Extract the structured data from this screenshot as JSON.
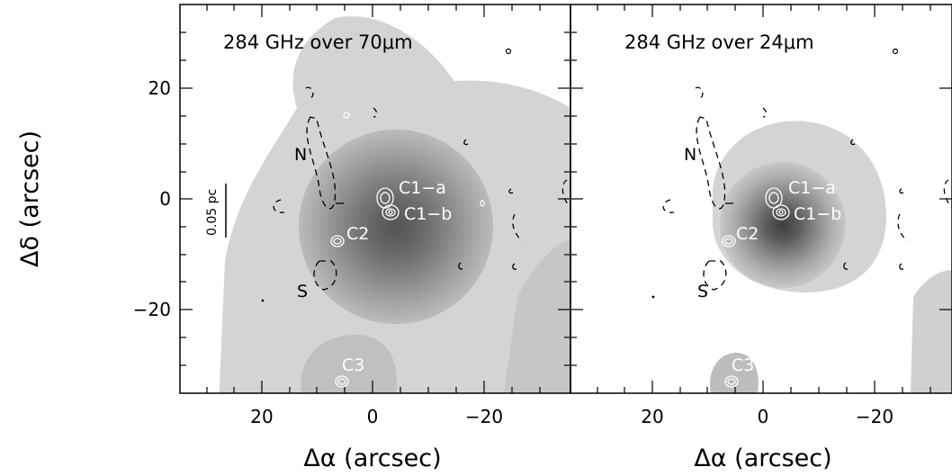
{
  "figure": {
    "xlabel": "Δα (arcsec)",
    "ylabel": "Δδ (arcsec)",
    "scalebar_label": "0.05 pc",
    "x_ticks": [
      "20",
      "0",
      "−20"
    ],
    "y_ticks": [
      "20",
      "0",
      "−20"
    ]
  },
  "panels": [
    {
      "title": "284 GHz over 70μm"
    },
    {
      "title": "284 GHz over 24μm"
    }
  ],
  "annotations": {
    "C1a": "C1−a",
    "C1b": "C1−b",
    "C2": "C2",
    "C3": "C3",
    "N": "N",
    "S": "S"
  },
  "chart_data": {
    "type": "heatmap",
    "panels": [
      {
        "title": "284 GHz over 70μm",
        "background": "70μm emission (grayscale filled contours)",
        "overlay": "284 GHz emission (contours)"
      },
      {
        "title": "284 GHz over 24μm",
        "background": "24μm emission (grayscale filled contours)",
        "overlay": "284 GHz emission (contours)"
      }
    ],
    "xlabel": "Δα (arcsec)",
    "ylabel": "Δδ (arcsec)",
    "xlim": [
      35,
      -35
    ],
    "ylim": [
      -35,
      35
    ],
    "x_ticks": [
      20,
      0,
      -20
    ],
    "y_ticks": [
      20,
      0,
      -20
    ],
    "sources": [
      {
        "name": "C1−a",
        "x": -2,
        "y": 0.5
      },
      {
        "name": "C1−b",
        "x": -2.5,
        "y": -2.5
      },
      {
        "name": "C2",
        "x": 7,
        "y": -7.5
      },
      {
        "name": "C3",
        "x": 6,
        "y": -33
      }
    ],
    "scale_bar": "0.05 pc",
    "colors": {
      "background": "#ffffff",
      "gray_levels": [
        "#d4d4d4",
        "#c6c6c6",
        "#b4b4b4",
        "#a2a2a2",
        "#8f8f8f",
        "#7c7c7c",
        "#6a6a6a",
        "#575757"
      ]
    }
  }
}
